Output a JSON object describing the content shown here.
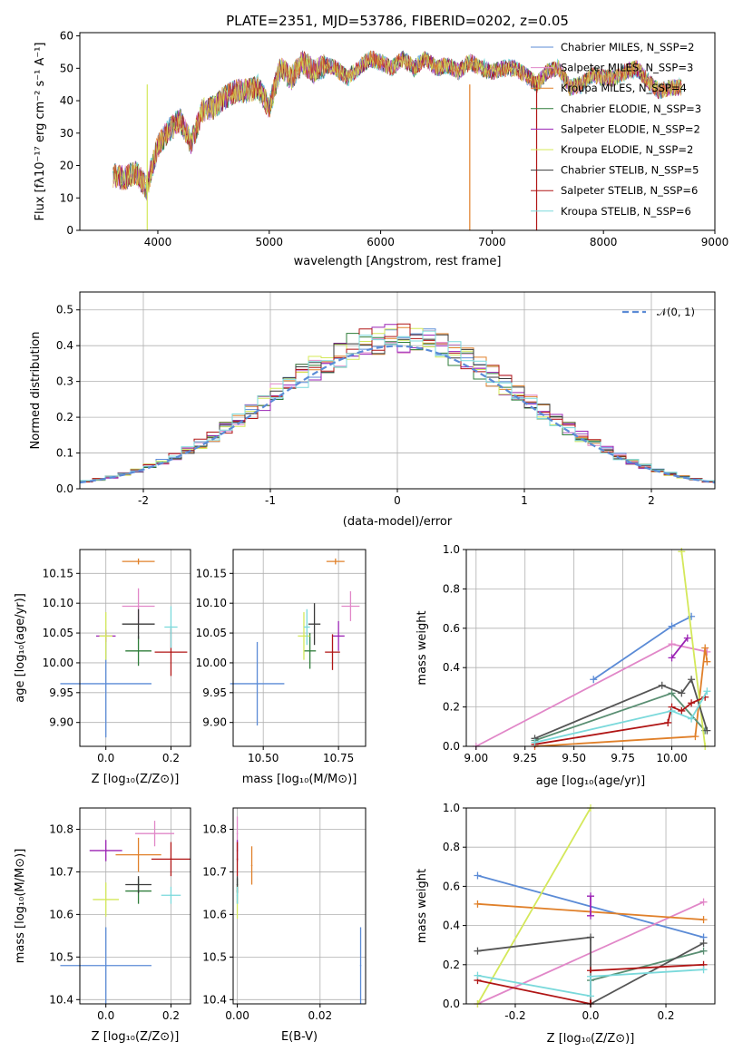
{
  "figure": {
    "colors": [
      "#5b8bd6",
      "#e187c8",
      "#e0802a",
      "#2f7d3a",
      "#9b23b4",
      "#d4e85a",
      "#3a3a3a",
      "#b01515",
      "#7ad9db"
    ],
    "extra_colors": {
      "gray": "#555555"
    }
  },
  "chart_data": [
    {
      "type": "line",
      "title": "PLATE=2351, MJD=53786, FIBERID=0202, z=0.05",
      "xlabel": "wavelength [Angstrom, rest frame]",
      "ylabel": "Flux [fλ10⁻¹⁷ erg cm⁻² s⁻¹ A⁻¹]",
      "xlim": [
        3300,
        9000
      ],
      "ylim": [
        0,
        61
      ],
      "xticks": [
        4000,
        5000,
        6000,
        7000,
        8000,
        9000
      ],
      "yticks": [
        0,
        10,
        20,
        30,
        40,
        50,
        60
      ],
      "legend_position": "top-right",
      "legend": [
        "Chabrier MILES, N_SSP=2",
        "Salpeter MILES, N_SSP=3",
        "Kroupa MILES, N_SSP=4",
        "Chabrier ELODIE, N_SSP=3",
        "Salpeter ELODIE, N_SSP=2",
        "Kroupa ELODIE, N_SSP=2",
        "Chabrier STELIB, N_SSP=5",
        "Salpeter STELIB, N_SSP=6",
        "Kroupa STELIB, N_SSP=6"
      ],
      "spectrum_envelope": {
        "x": [
          3600,
          3700,
          3800,
          3900,
          3950,
          4000,
          4100,
          4200,
          4300,
          4400,
          4500,
          4600,
          4700,
          4800,
          4900,
          5000,
          5100,
          5200,
          5300,
          5400,
          5500,
          5600,
          5700,
          5800,
          5900,
          6000,
          6100,
          6200,
          6300,
          6400,
          6500,
          6600,
          6700,
          6800,
          6900,
          7000,
          7100,
          7200,
          7300,
          7400,
          7500,
          7600,
          7700,
          7800,
          7900,
          8000,
          8100,
          8200,
          8300,
          8400,
          8500,
          8600,
          8700
        ],
        "y": [
          17,
          16,
          18,
          13,
          20,
          26,
          31,
          34,
          27,
          37,
          38,
          41,
          43,
          43,
          44,
          38,
          50,
          47,
          52,
          49,
          51,
          50,
          47,
          50,
          53,
          52,
          50,
          53,
          50,
          53,
          50,
          51,
          49,
          52,
          50,
          49,
          50,
          50,
          48,
          45,
          49,
          50,
          44,
          45,
          48,
          47,
          47,
          49,
          50,
          46,
          43,
          44,
          44
        ]
      },
      "spikes": [
        {
          "x": 3905,
          "series": "Kroupa ELODIE"
        },
        {
          "x": 6800,
          "series": "Kroupa MILES"
        },
        {
          "x": 7400,
          "series": "Salpeter STELIB"
        }
      ]
    },
    {
      "type": "bar",
      "subtype": "step-histogram",
      "xlabel": "(data-model)/error",
      "ylabel": "Normed distribution",
      "xlim": [
        -2.5,
        2.5
      ],
      "ylim": [
        0,
        0.55
      ],
      "xticks": [
        -2,
        -1,
        0,
        1,
        2
      ],
      "yticks": [
        0.0,
        0.1,
        0.2,
        0.3,
        0.4,
        0.5
      ],
      "grid": true,
      "bin_width": 0.1,
      "legend_position": "top-right",
      "legend": [
        "𝒩(0, 1)"
      ],
      "reference_curve": {
        "type": "normal",
        "mean": 0,
        "sigma": 1,
        "style": "dashed"
      }
    },
    {
      "type": "scatter",
      "subtype": "errorbar",
      "xlabel": "Z [log₁₀(Z/Z⊙)]",
      "ylabel": "age  [log₁₀(age/yr)]",
      "xlim": [
        -0.08,
        0.26
      ],
      "ylim": [
        9.86,
        10.19
      ],
      "xticks": [
        0.0,
        0.2
      ],
      "yticks": [
        9.9,
        9.95,
        10.0,
        10.05,
        10.1,
        10.15
      ],
      "grid": true,
      "points": [
        {
          "x": 0.0,
          "y": 9.965,
          "xerr": 0.14,
          "yerr": 0.09
        },
        {
          "x": 0.1,
          "y": 10.095,
          "xerr": 0.05,
          "yerr": 0.03
        },
        {
          "x": 0.1,
          "y": 10.17,
          "xerr": 0.05,
          "yerr": 0.005
        },
        {
          "x": 0.1,
          "y": 10.02,
          "xerr": 0.04,
          "yerr": 0.025
        },
        {
          "x": 0.0,
          "y": 10.045,
          "xerr": 0.03,
          "yerr": 0.01
        },
        {
          "x": 0.0,
          "y": 10.045,
          "xerr": 0.02,
          "yerr": 0.04
        },
        {
          "x": 0.1,
          "y": 10.065,
          "xerr": 0.05,
          "yerr": 0.025
        },
        {
          "x": 0.2,
          "y": 10.018,
          "xerr": 0.05,
          "yerr": 0.04
        },
        {
          "x": 0.2,
          "y": 10.06,
          "xerr": 0.02,
          "yerr": 0.035
        }
      ]
    },
    {
      "type": "scatter",
      "subtype": "errorbar",
      "xlabel": "mass [log₁₀(M/M⊙)]",
      "ylabel": "",
      "xlim": [
        10.4,
        10.84
      ],
      "ylim": [
        9.86,
        10.19
      ],
      "xticks": [
        10.5,
        10.75
      ],
      "yticks": [
        9.9,
        9.95,
        10.0,
        10.05,
        10.1,
        10.15
      ],
      "grid": true,
      "points": [
        {
          "x": 10.48,
          "y": 9.965,
          "xerr": 0.09,
          "yerr": 0.07
        },
        {
          "x": 10.79,
          "y": 10.095,
          "xerr": 0.03,
          "yerr": 0.025
        },
        {
          "x": 10.74,
          "y": 10.17,
          "xerr": 0.03,
          "yerr": 0.005
        },
        {
          "x": 10.655,
          "y": 10.02,
          "xerr": 0.02,
          "yerr": 0.03
        },
        {
          "x": 10.75,
          "y": 10.045,
          "xerr": 0.02,
          "yerr": 0.025
        },
        {
          "x": 10.635,
          "y": 10.045,
          "xerr": 0.02,
          "yerr": 0.04
        },
        {
          "x": 10.67,
          "y": 10.065,
          "xerr": 0.02,
          "yerr": 0.035
        },
        {
          "x": 10.73,
          "y": 10.018,
          "xerr": 0.025,
          "yerr": 0.03
        },
        {
          "x": 10.645,
          "y": 10.06,
          "xerr": 0.01,
          "yerr": 0.03
        }
      ]
    },
    {
      "type": "line",
      "xlabel": "age  [log₁₀(age/yr)]",
      "ylabel": "mass weight",
      "xlim": [
        8.95,
        10.22
      ],
      "ylim": [
        0,
        1
      ],
      "xticks": [
        9.0,
        9.25,
        9.5,
        9.75,
        10.0
      ],
      "yticks": [
        0.0,
        0.2,
        0.4,
        0.6,
        0.8,
        1.0
      ],
      "grid": true,
      "series": [
        {
          "name": "Chabrier MILES",
          "x": [
            9.6,
            10.0,
            10.1
          ],
          "y": [
            0.34,
            0.61,
            0.66
          ]
        },
        {
          "name": "Salpeter MILES",
          "x": [
            9.0,
            10.0,
            10.18
          ],
          "y": [
            0.0,
            0.52,
            0.48
          ]
        },
        {
          "name": "Kroupa MILES",
          "x": [
            9.3,
            10.12,
            10.17,
            10.18
          ],
          "y": [
            0.0,
            0.05,
            0.5,
            0.43
          ]
        },
        {
          "name": "Chabrier ELODIE",
          "x": [
            9.3,
            10.0,
            10.17
          ],
          "y": [
            0.03,
            0.27,
            0.08
          ]
        },
        {
          "name": "Salpeter ELODIE",
          "x": [
            10.0,
            10.08
          ],
          "y": [
            0.45,
            0.55
          ]
        },
        {
          "name": "Kroupa ELODIE",
          "x": [
            10.05,
            10.17
          ],
          "y": [
            0.99,
            0.0
          ]
        },
        {
          "name": "Chabrier STELIB",
          "x": [
            9.3,
            9.95,
            10.05,
            10.1,
            10.18
          ],
          "y": [
            0.04,
            0.31,
            0.27,
            0.34,
            0.08
          ]
        },
        {
          "name": "Salpeter STELIB",
          "x": [
            9.3,
            9.98,
            10.0,
            10.05,
            10.1,
            10.17
          ],
          "y": [
            0.01,
            0.12,
            0.2,
            0.18,
            0.22,
            0.25
          ]
        },
        {
          "name": "Kroupa STELIB",
          "x": [
            9.3,
            10.0,
            10.1,
            10.18
          ],
          "y": [
            0.02,
            0.18,
            0.14,
            0.28
          ]
        }
      ]
    },
    {
      "type": "scatter",
      "subtype": "errorbar",
      "xlabel": "Z [log₁₀(Z/Z⊙)]",
      "ylabel": "mass [log₁₀(M/M⊙)]",
      "xlim": [
        -0.08,
        0.26
      ],
      "ylim": [
        10.39,
        10.85
      ],
      "xticks": [
        0.0,
        0.2
      ],
      "yticks": [
        10.4,
        10.5,
        10.6,
        10.7,
        10.8
      ],
      "grid": true,
      "points": [
        {
          "x": 0.0,
          "y": 10.48,
          "xerr": 0.14,
          "yerr": 0.09
        },
        {
          "x": 0.15,
          "y": 10.79,
          "xerr": 0.06,
          "yerr": 0.03
        },
        {
          "x": 0.1,
          "y": 10.74,
          "xerr": 0.07,
          "yerr": 0.04
        },
        {
          "x": 0.1,
          "y": 10.655,
          "xerr": 0.04,
          "yerr": 0.03
        },
        {
          "x": 0.0,
          "y": 10.75,
          "xerr": 0.05,
          "yerr": 0.025
        },
        {
          "x": 0.0,
          "y": 10.635,
          "xerr": 0.04,
          "yerr": 0.04
        },
        {
          "x": 0.1,
          "y": 10.67,
          "xerr": 0.04,
          "yerr": 0.02
        },
        {
          "x": 0.2,
          "y": 10.73,
          "xerr": 0.06,
          "yerr": 0.04
        },
        {
          "x": 0.2,
          "y": 10.645,
          "xerr": 0.03,
          "yerr": 0.02
        }
      ]
    },
    {
      "type": "scatter",
      "subtype": "errorbar",
      "xlabel": "E(B-V)",
      "ylabel": "",
      "xlim": [
        -0.001,
        0.031
      ],
      "ylim": [
        10.39,
        10.85
      ],
      "xticks": [
        0.0,
        0.02
      ],
      "yticks": [
        10.4,
        10.5,
        10.6,
        10.7,
        10.8
      ],
      "grid": true,
      "points": [
        {
          "x": 0.0298,
          "y": 10.48,
          "xerr": 0,
          "yerr": 0.09
        },
        {
          "x": 0.0,
          "y": 10.79,
          "xerr": 0,
          "yerr": 0.04
        },
        {
          "x": 0.0035,
          "y": 10.715,
          "xerr": 0,
          "yerr": 0.045
        },
        {
          "x": 0.0,
          "y": 10.655,
          "xerr": 0,
          "yerr": 0.03
        },
        {
          "x": 0.0,
          "y": 10.75,
          "xerr": 0,
          "yerr": 0.025
        },
        {
          "x": 0.0,
          "y": 10.63,
          "xerr": 0,
          "yerr": 0.04
        },
        {
          "x": 0.0,
          "y": 10.67,
          "xerr": 0,
          "yerr": 0.02
        },
        {
          "x": 0.0,
          "y": 10.73,
          "xerr": 0,
          "yerr": 0.04
        },
        {
          "x": 0.0,
          "y": 10.645,
          "xerr": 0,
          "yerr": 0.02
        }
      ]
    },
    {
      "type": "line",
      "xlabel": "Z [log₁₀(Z/Z⊙)]",
      "ylabel": "mass weight",
      "xlim": [
        -0.33,
        0.33
      ],
      "ylim": [
        0,
        1
      ],
      "xticks": [
        -0.2,
        0.0,
        0.2
      ],
      "yticks": [
        0.0,
        0.2,
        0.4,
        0.6,
        0.8,
        1.0
      ],
      "grid": true,
      "series": [
        {
          "name": "Chabrier MILES",
          "x": [
            -0.3,
            0.3
          ],
          "y": [
            0.655,
            0.34
          ]
        },
        {
          "name": "Salpeter MILES",
          "x": [
            -0.3,
            0.3
          ],
          "y": [
            0.0,
            0.52
          ]
        },
        {
          "name": "Kroupa MILES",
          "x": [
            -0.3,
            0.3
          ],
          "y": [
            0.51,
            0.43
          ]
        },
        {
          "name": "Chabrier ELODIE",
          "x": [
            0.0,
            0.3
          ],
          "y": [
            0.12,
            0.27
          ]
        },
        {
          "name": "Salpeter ELODIE",
          "x": [
            0.0,
            0.0
          ],
          "y": [
            0.45,
            0.55
          ]
        },
        {
          "name": "Kroupa ELODIE",
          "x": [
            -0.3,
            0.0
          ],
          "y": [
            0.0,
            1.0
          ]
        },
        {
          "name": "Chabrier STELIB",
          "x": [
            -0.3,
            0.0,
            0.0,
            0.3
          ],
          "y": [
            0.27,
            0.34,
            0.0,
            0.31
          ]
        },
        {
          "name": "Salpeter STELIB",
          "x": [
            -0.3,
            0.0,
            0.0,
            0.3
          ],
          "y": [
            0.12,
            0.0,
            0.17,
            0.2
          ]
        },
        {
          "name": "Kroupa STELIB",
          "x": [
            -0.3,
            0.0,
            0.0,
            0.3
          ],
          "y": [
            0.145,
            0.04,
            0.14,
            0.175
          ]
        }
      ]
    }
  ]
}
